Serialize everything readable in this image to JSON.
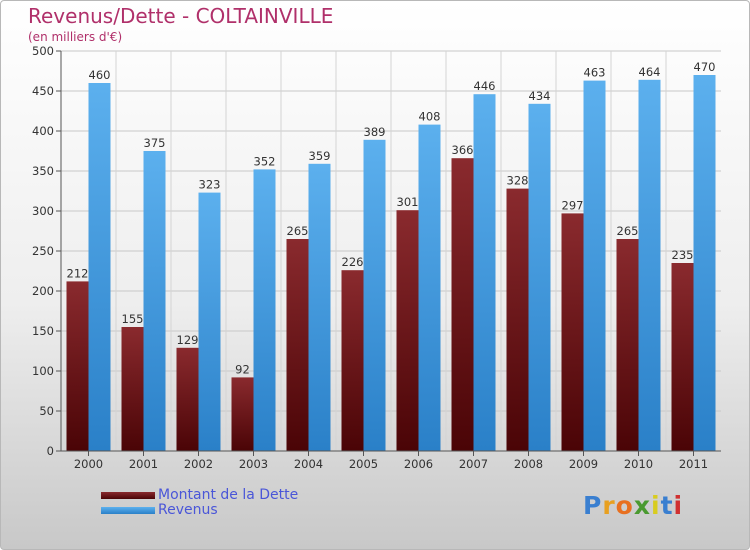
{
  "chart_data": {
    "type": "bar",
    "title": "Revenus/Dette - COLTAINVILLE",
    "subtitle": "(en milliers d'€)",
    "categories": [
      "2000",
      "2001",
      "2002",
      "2003",
      "2004",
      "2005",
      "2006",
      "2007",
      "2008",
      "2009",
      "2010",
      "2011"
    ],
    "series": [
      {
        "name": "Montant de la Dette",
        "color": "#7a1e22",
        "values": [
          212,
          155,
          129,
          92,
          265,
          226,
          301,
          366,
          328,
          297,
          265,
          235
        ]
      },
      {
        "name": "Revenus",
        "color": "#4aa0e0",
        "values": [
          460,
          375,
          323,
          352,
          359,
          389,
          408,
          446,
          434,
          463,
          464,
          470
        ]
      }
    ],
    "ylim": [
      0,
      500
    ],
    "yticks": [
      0,
      50,
      100,
      150,
      200,
      250,
      300,
      350,
      400,
      450,
      500
    ],
    "grid": true,
    "legend_position": "bottom-left"
  },
  "branding": {
    "logo_text": "Proxiti",
    "logo_letter_colors": [
      "#3a7fd0",
      "#e8a020",
      "#e87020",
      "#4a9a30",
      "#d8cc20",
      "#3a7fd0",
      "#d03030"
    ]
  }
}
